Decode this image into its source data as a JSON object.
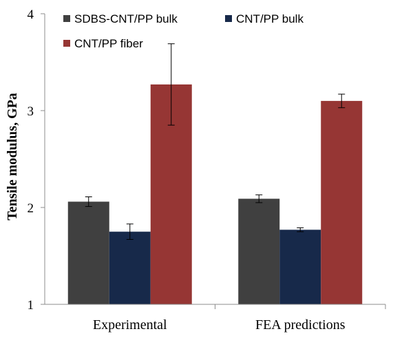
{
  "chart_data": {
    "type": "bar",
    "title": "",
    "xlabel": "",
    "ylabel": "Tensile modulus, GPa",
    "ylim": [
      1,
      4
    ],
    "yticks": [
      1,
      2,
      3,
      4
    ],
    "grid": false,
    "legend_position": "top-left",
    "categories": [
      "Experimental",
      "FEA predictions"
    ],
    "series": [
      {
        "name": "SDBS-CNT/PP bulk",
        "color": "#404040",
        "values": [
          2.06,
          2.09
        ],
        "errors": [
          0.05,
          0.04
        ]
      },
      {
        "name": "CNT/PP bulk",
        "color": "#17294a",
        "values": [
          1.75,
          1.77
        ],
        "errors": [
          0.08,
          0.02
        ]
      },
      {
        "name": "CNT/PP fiber",
        "color": "#963634",
        "values": [
          3.27,
          3.1
        ],
        "errors": [
          0.42,
          0.07
        ]
      }
    ]
  }
}
